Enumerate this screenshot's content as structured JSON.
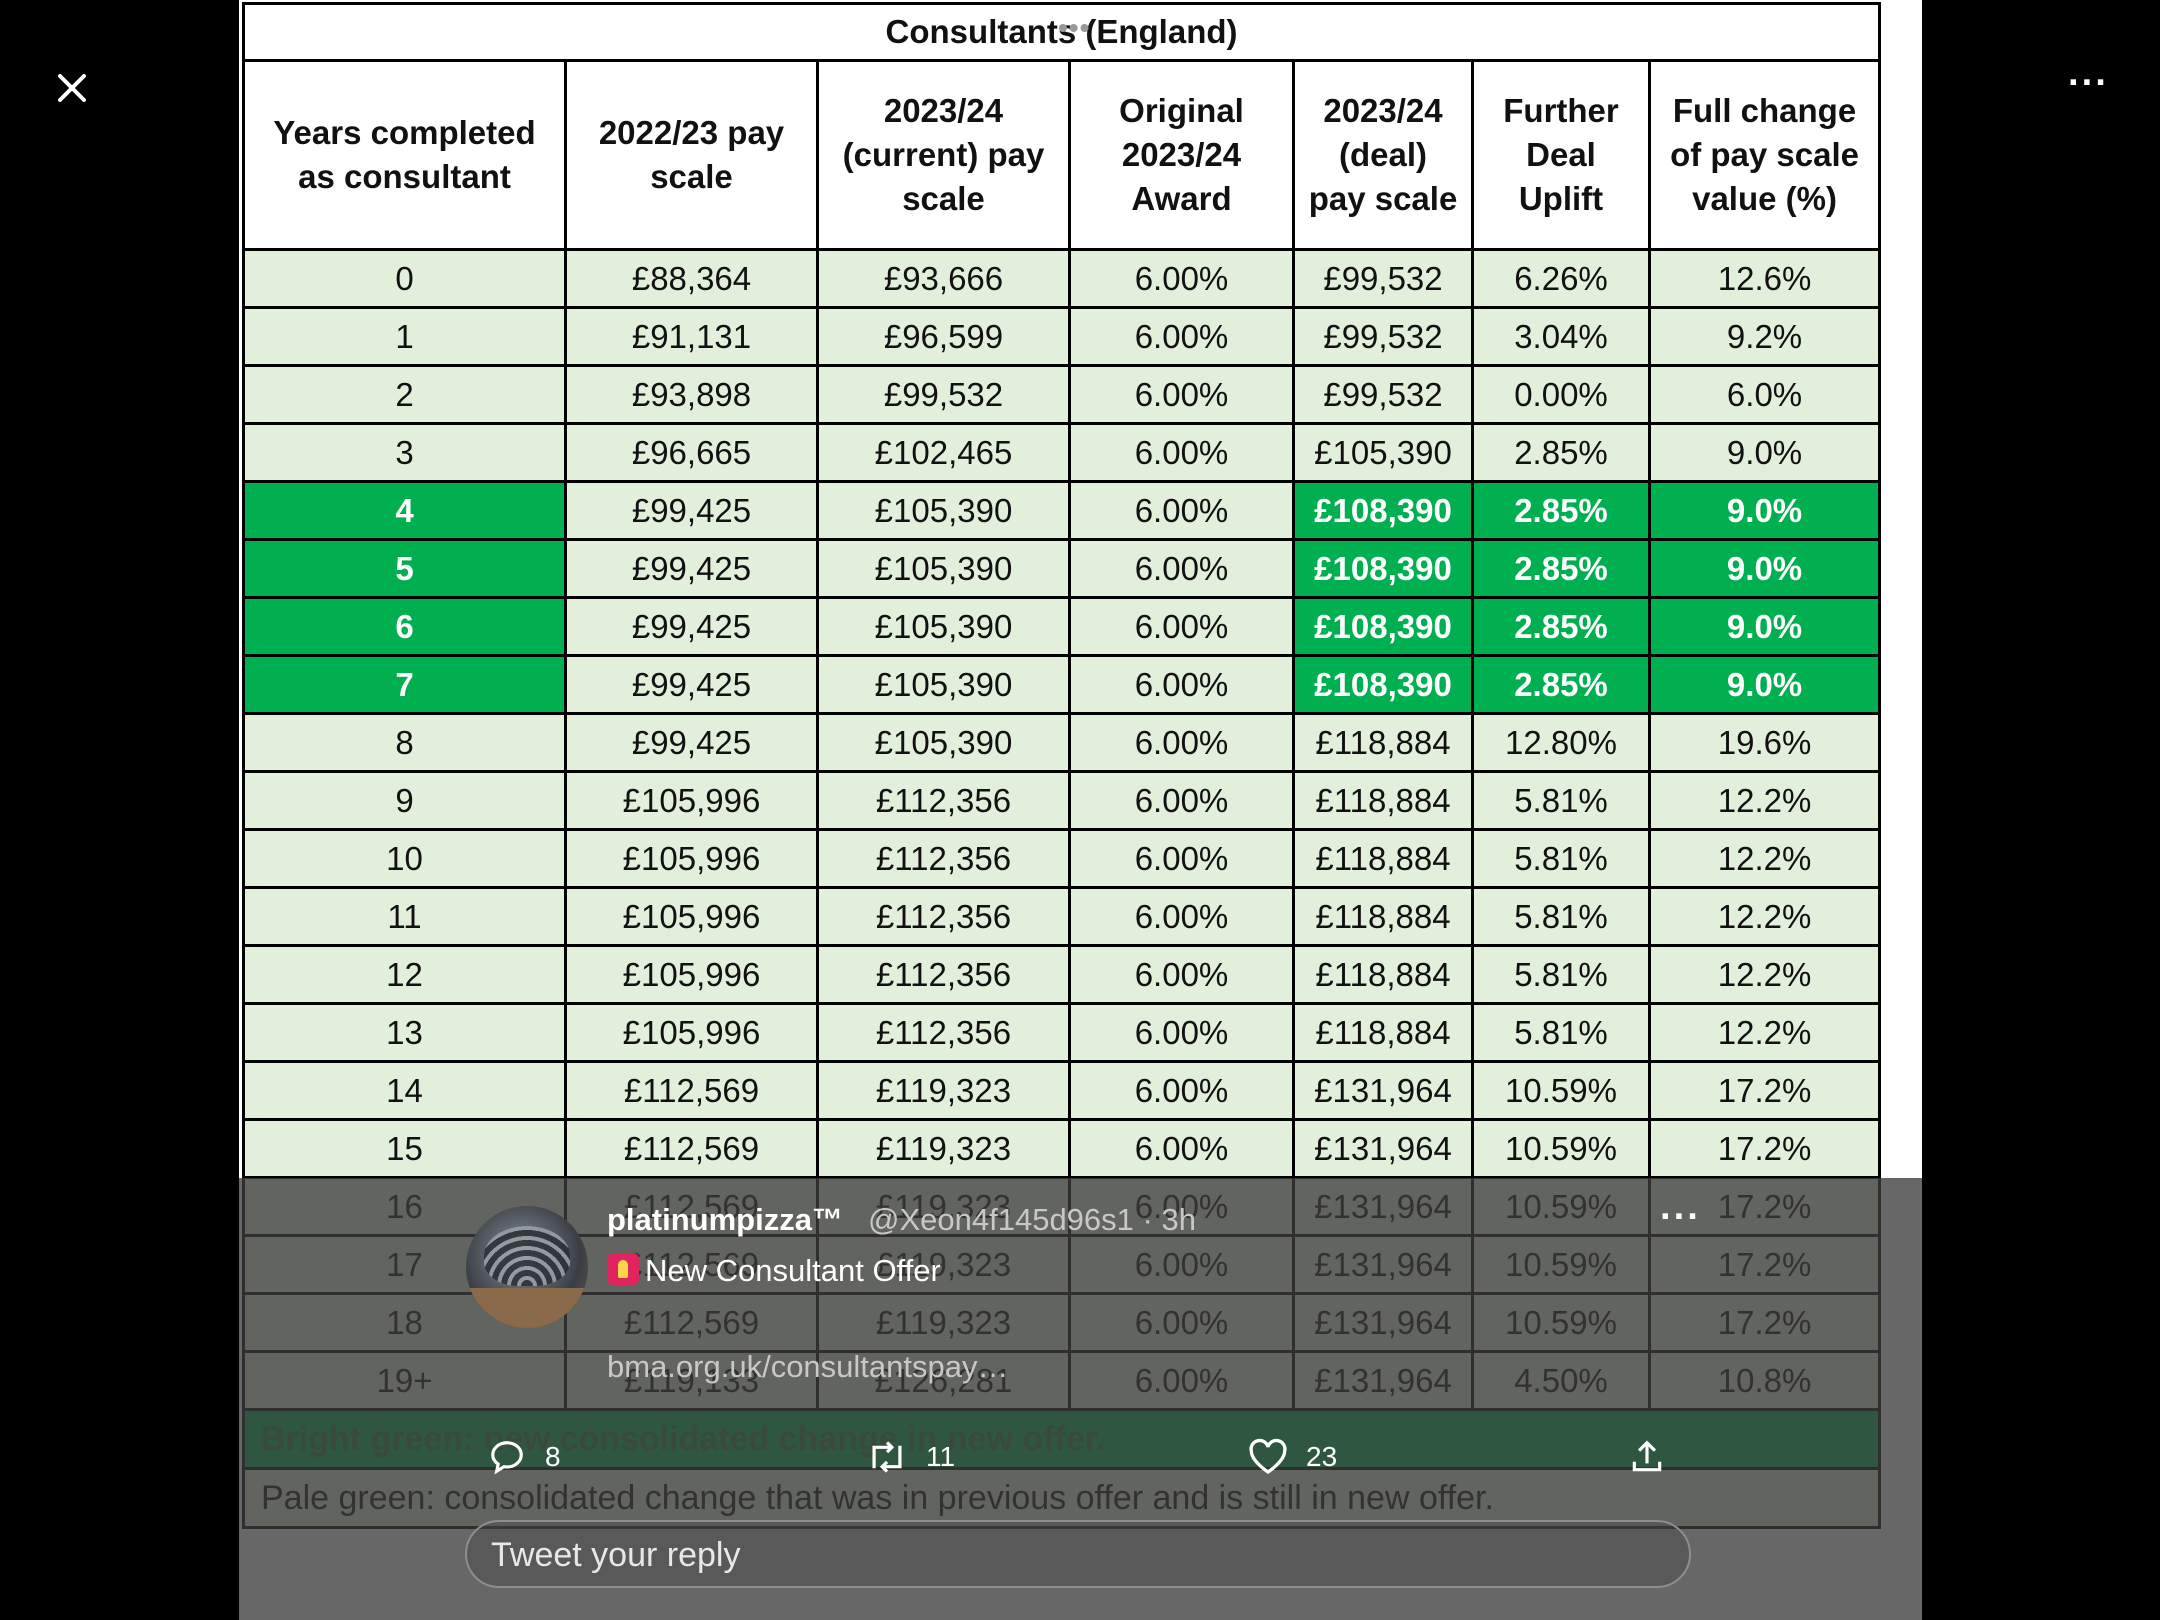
{
  "table": {
    "title": "Consultants (England)",
    "headers": [
      [
        "Years completed",
        "as consultant"
      ],
      [
        "2022/23 pay",
        "scale"
      ],
      [
        "2023/24",
        "(current) pay",
        "scale"
      ],
      [
        "Original",
        "2023/24",
        "Award"
      ],
      [
        "2023/24",
        "(deal)",
        "pay scale"
      ],
      [
        "Further",
        "Deal",
        "Uplift"
      ],
      [
        "Full change",
        "of pay scale",
        "value (%)"
      ]
    ],
    "rows": [
      {
        "cells": [
          "0",
          "£88,364",
          "£93,666",
          "6.00%",
          "£99,532",
          "6.26%",
          "12.6%"
        ],
        "bright": false
      },
      {
        "cells": [
          "1",
          "£91,131",
          "£96,599",
          "6.00%",
          "£99,532",
          "3.04%",
          "9.2%"
        ],
        "bright": false
      },
      {
        "cells": [
          "2",
          "£93,898",
          "£99,532",
          "6.00%",
          "£99,532",
          "0.00%",
          "6.0%"
        ],
        "bright": false
      },
      {
        "cells": [
          "3",
          "£96,665",
          "£102,465",
          "6.00%",
          "£105,390",
          "2.85%",
          "9.0%"
        ],
        "bright": false
      },
      {
        "cells": [
          "4",
          "£99,425",
          "£105,390",
          "6.00%",
          "£108,390",
          "2.85%",
          "9.0%"
        ],
        "bright": true
      },
      {
        "cells": [
          "5",
          "£99,425",
          "£105,390",
          "6.00%",
          "£108,390",
          "2.85%",
          "9.0%"
        ],
        "bright": true
      },
      {
        "cells": [
          "6",
          "£99,425",
          "£105,390",
          "6.00%",
          "£108,390",
          "2.85%",
          "9.0%"
        ],
        "bright": true
      },
      {
        "cells": [
          "7",
          "£99,425",
          "£105,390",
          "6.00%",
          "£108,390",
          "2.85%",
          "9.0%"
        ],
        "bright": true
      },
      {
        "cells": [
          "8",
          "£99,425",
          "£105,390",
          "6.00%",
          "£118,884",
          "12.80%",
          "19.6%"
        ],
        "bright": false
      },
      {
        "cells": [
          "9",
          "£105,996",
          "£112,356",
          "6.00%",
          "£118,884",
          "5.81%",
          "12.2%"
        ],
        "bright": false
      },
      {
        "cells": [
          "10",
          "£105,996",
          "£112,356",
          "6.00%",
          "£118,884",
          "5.81%",
          "12.2%"
        ],
        "bright": false
      },
      {
        "cells": [
          "11",
          "£105,996",
          "£112,356",
          "6.00%",
          "£118,884",
          "5.81%",
          "12.2%"
        ],
        "bright": false
      },
      {
        "cells": [
          "12",
          "£105,996",
          "£112,356",
          "6.00%",
          "£118,884",
          "5.81%",
          "12.2%"
        ],
        "bright": false
      },
      {
        "cells": [
          "13",
          "£105,996",
          "£112,356",
          "6.00%",
          "£118,884",
          "5.81%",
          "12.2%"
        ],
        "bright": false
      },
      {
        "cells": [
          "14",
          "£112,569",
          "£119,323",
          "6.00%",
          "£131,964",
          "10.59%",
          "17.2%"
        ],
        "bright": false
      },
      {
        "cells": [
          "15",
          "£112,569",
          "£119,323",
          "6.00%",
          "£131,964",
          "10.59%",
          "17.2%"
        ],
        "bright": false
      },
      {
        "cells": [
          "16",
          "£112,569",
          "£119,323",
          "6.00%",
          "£131,964",
          "10.59%",
          "17.2%"
        ],
        "bright": false
      },
      {
        "cells": [
          "17",
          "£112,569",
          "£119,323",
          "6.00%",
          "£131,964",
          "10.59%",
          "17.2%"
        ],
        "bright": false
      },
      {
        "cells": [
          "18",
          "£112,569",
          "£119,323",
          "6.00%",
          "£131,964",
          "10.59%",
          "17.2%"
        ],
        "bright": false
      },
      {
        "cells": [
          "19+",
          "£119,133",
          "£126,281",
          "6.00%",
          "£131,964",
          "4.50%",
          "10.8%"
        ],
        "bright": false
      }
    ],
    "legend_bright": "Bright green: new consolidated change in new offer.",
    "legend_pale": "Pale green: consolidated change that was in previous offer and is still in new offer."
  },
  "tweet": {
    "display_name": "platinumpizza™",
    "handle_time": "@Xeon4f145d96s1 · 3h",
    "body": "New Consultant Offer",
    "link": "bma.org.uk/consultantspay…",
    "more_glyph": "···",
    "replies": "8",
    "retweets": "11",
    "likes": "23",
    "reply_placeholder": "Tweet your reply"
  },
  "viewer": {
    "more_glyph": "···",
    "handle_glyph": "•••"
  },
  "colors": {
    "bright_green": "#00b050",
    "pale_green": "#e2efda"
  }
}
